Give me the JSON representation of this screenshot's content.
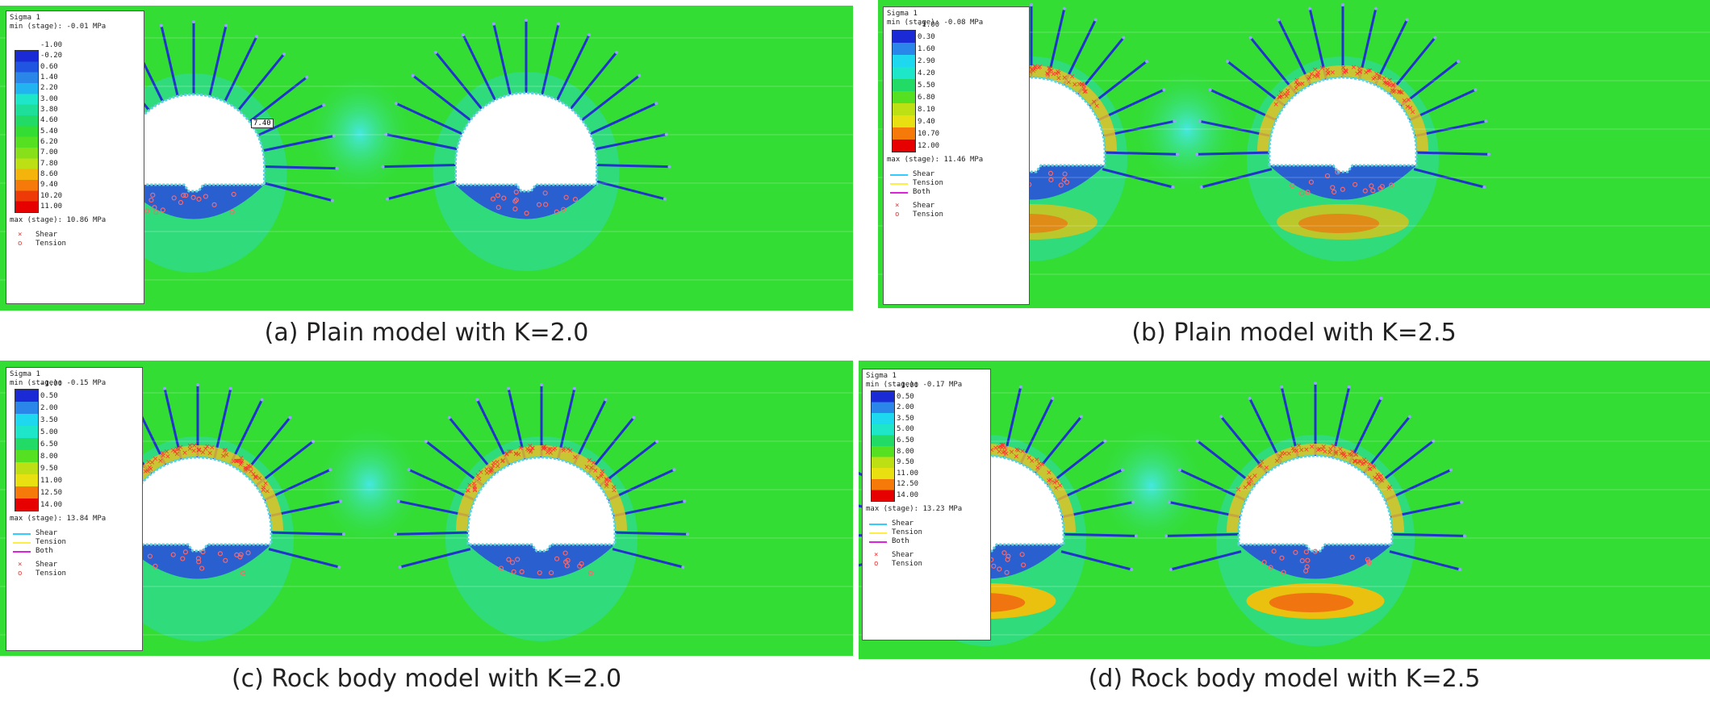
{
  "panels": [
    {
      "id": "a",
      "caption": "(a) Plain model with K=2.0",
      "legend": {
        "title": "Sigma 1",
        "min": "min (stage): -0.01 MPa",
        "ticks": [
          "-1.00",
          "-0.20",
          "0.60",
          "1.40",
          "2.20",
          "3.00",
          "3.80",
          "4.60",
          "5.40",
          "6.20",
          "7.00",
          "7.80",
          "8.60",
          "9.40",
          "10.20",
          "11.00"
        ],
        "max": "max (stage): 10.86 MPa",
        "lines": [],
        "markers": [
          {
            "symbol": "×",
            "label": "Shear"
          },
          {
            "symbol": "o",
            "label": "Tension"
          }
        ]
      },
      "crown_label": "7.40",
      "crown_yield": "none",
      "invert_hot": "none"
    },
    {
      "id": "b",
      "caption": "(b) Plain model with K=2.5",
      "legend": {
        "title": "Sigma 1",
        "min": "min (stage): -0.08 MPa",
        "ticks": [
          "-1.00",
          "0.30",
          "1.60",
          "2.90",
          "4.20",
          "5.50",
          "6.80",
          "8.10",
          "9.40",
          "10.70",
          "12.00"
        ],
        "max": "max (stage): 11.46 MPa",
        "lines": [
          {
            "color": "#33ccff",
            "label": "Shear"
          },
          {
            "color": "#ffee44",
            "label": "Tension"
          },
          {
            "color": "#dd22dd",
            "label": "Both"
          }
        ],
        "markers": [
          {
            "symbol": "×",
            "label": "Shear"
          },
          {
            "symbol": "o",
            "label": "Tension"
          }
        ]
      },
      "crown_label": "",
      "crown_yield": "strong",
      "invert_hot": "medium"
    },
    {
      "id": "c",
      "caption": "(c) Rock body model with K=2.0",
      "legend": {
        "title": "Sigma 1",
        "min": "min (stage): -0.15 MPa",
        "ticks": [
          "-1.00",
          "0.50",
          "2.00",
          "3.50",
          "5.00",
          "6.50",
          "8.00",
          "9.50",
          "11.00",
          "12.50",
          "14.00"
        ],
        "max": "max (stage): 13.84 MPa",
        "lines": [
          {
            "color": "#33ccff",
            "label": "Shear"
          },
          {
            "color": "#ffee44",
            "label": "Tension"
          },
          {
            "color": "#dd22dd",
            "label": "Both"
          }
        ],
        "markers": [
          {
            "symbol": "×",
            "label": "Shear"
          },
          {
            "symbol": "o",
            "label": "Tension"
          }
        ]
      },
      "crown_label": "",
      "crown_yield": "strong",
      "invert_hot": "none"
    },
    {
      "id": "d",
      "caption": "(d) Rock body model with K=2.5",
      "legend": {
        "title": "Sigma 1",
        "min": "min (stage): -0.17 MPa",
        "ticks": [
          "-1.00",
          "0.50",
          "2.00",
          "3.50",
          "5.00",
          "6.50",
          "8.00",
          "9.50",
          "11.00",
          "12.50",
          "14.00"
        ],
        "max": "max (stage): 13.23 MPa",
        "lines": [
          {
            "color": "#33ccff",
            "label": "Shear"
          },
          {
            "color": "#ffee44",
            "label": "Tension"
          },
          {
            "color": "#dd22dd",
            "label": "Both"
          }
        ],
        "markers": [
          {
            "symbol": "×",
            "label": "Shear"
          },
          {
            "symbol": "o",
            "label": "Tension"
          }
        ]
      },
      "crown_label": "",
      "crown_yield": "strong",
      "invert_hot": "strong"
    }
  ],
  "colors": {
    "background": "#33dd33",
    "bolt": "#2233cc",
    "yield_marker": "#ff3333",
    "invert_fill": "#2a5fcf"
  }
}
